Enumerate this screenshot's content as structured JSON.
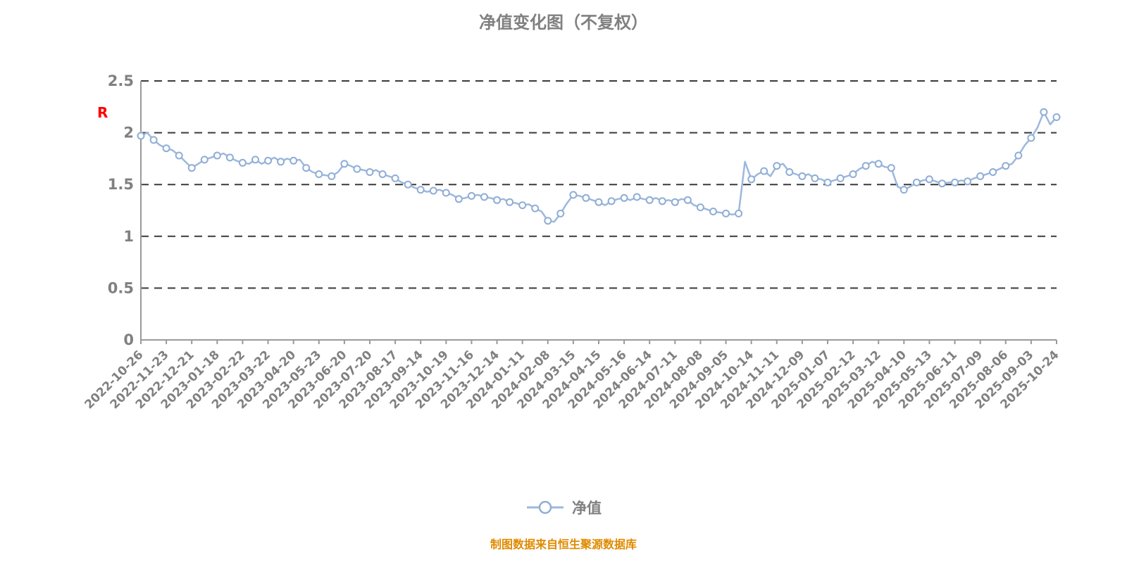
{
  "title": "净值变化图（不复权）",
  "left_marker": "R",
  "legend": {
    "label": "净值"
  },
  "source": "制图数据来自恒生聚源数据库",
  "colors": {
    "line": "#9db8dd",
    "marker_fill": "#ffffff",
    "marker_stroke": "#8fadd6",
    "title_text": "#808080",
    "axis_label": "#808080",
    "grid_line": "#3a3a3a",
    "axis_line": "#9a9a9a",
    "source_text": "#e08a00",
    "left_marker_text": "#ff0000"
  },
  "chart_data": {
    "type": "line",
    "series_name": "净值",
    "ylim": [
      0,
      2.5
    ],
    "y_ticks": [
      0,
      0.5,
      1,
      1.5,
      2,
      2.5
    ],
    "grid": "dashed-horizontal",
    "legend_position": "bottom",
    "x_tick_labels": [
      "2022-10-26",
      "2022-11-23",
      "2022-12-21",
      "2023-01-18",
      "2023-02-22",
      "2023-03-22",
      "2023-04-20",
      "2023-05-23",
      "2023-06-20",
      "2023-07-20",
      "2023-08-17",
      "2023-09-14",
      "2023-10-19",
      "2023-11-16",
      "2023-12-14",
      "2024-01-11",
      "2024-02-08",
      "2024-03-15",
      "2024-04-15",
      "2024-05-16",
      "2024-06-14",
      "2024-07-11",
      "2024-08-08",
      "2024-09-05",
      "2024-10-14",
      "2024-11-11",
      "2024-12-09",
      "2025-01-07",
      "2025-02-12",
      "2025-03-12",
      "2025-04-10",
      "2025-05-13",
      "2025-06-11",
      "2025-07-09",
      "2025-08-06",
      "2025-09-03",
      "2025-10-24"
    ],
    "values": [
      1.97,
      2.0,
      1.93,
      1.88,
      1.85,
      1.83,
      1.78,
      1.72,
      1.66,
      1.7,
      1.74,
      1.76,
      1.78,
      1.8,
      1.76,
      1.73,
      1.71,
      1.7,
      1.74,
      1.7,
      1.73,
      1.76,
      1.72,
      1.75,
      1.73,
      1.74,
      1.66,
      1.62,
      1.6,
      1.59,
      1.58,
      1.62,
      1.7,
      1.68,
      1.65,
      1.64,
      1.62,
      1.64,
      1.6,
      1.58,
      1.56,
      1.52,
      1.5,
      1.47,
      1.45,
      1.43,
      1.44,
      1.45,
      1.42,
      1.4,
      1.36,
      1.37,
      1.39,
      1.4,
      1.38,
      1.37,
      1.35,
      1.36,
      1.33,
      1.32,
      1.3,
      1.31,
      1.27,
      1.24,
      1.15,
      1.14,
      1.22,
      1.32,
      1.4,
      1.39,
      1.37,
      1.35,
      1.33,
      1.3,
      1.34,
      1.36,
      1.37,
      1.35,
      1.38,
      1.36,
      1.35,
      1.37,
      1.34,
      1.35,
      1.33,
      1.36,
      1.35,
      1.3,
      1.28,
      1.26,
      1.24,
      1.23,
      1.22,
      1.21,
      1.22,
      1.72,
      1.55,
      1.6,
      1.63,
      1.58,
      1.68,
      1.7,
      1.62,
      1.6,
      1.58,
      1.6,
      1.56,
      1.55,
      1.52,
      1.54,
      1.56,
      1.58,
      1.6,
      1.65,
      1.68,
      1.72,
      1.7,
      1.67,
      1.66,
      1.48,
      1.45,
      1.48,
      1.52,
      1.54,
      1.55,
      1.53,
      1.51,
      1.52,
      1.52,
      1.54,
      1.53,
      1.56,
      1.58,
      1.6,
      1.62,
      1.65,
      1.68,
      1.7,
      1.78,
      1.88,
      1.95,
      2.05,
      2.2,
      2.08,
      2.15
    ]
  }
}
